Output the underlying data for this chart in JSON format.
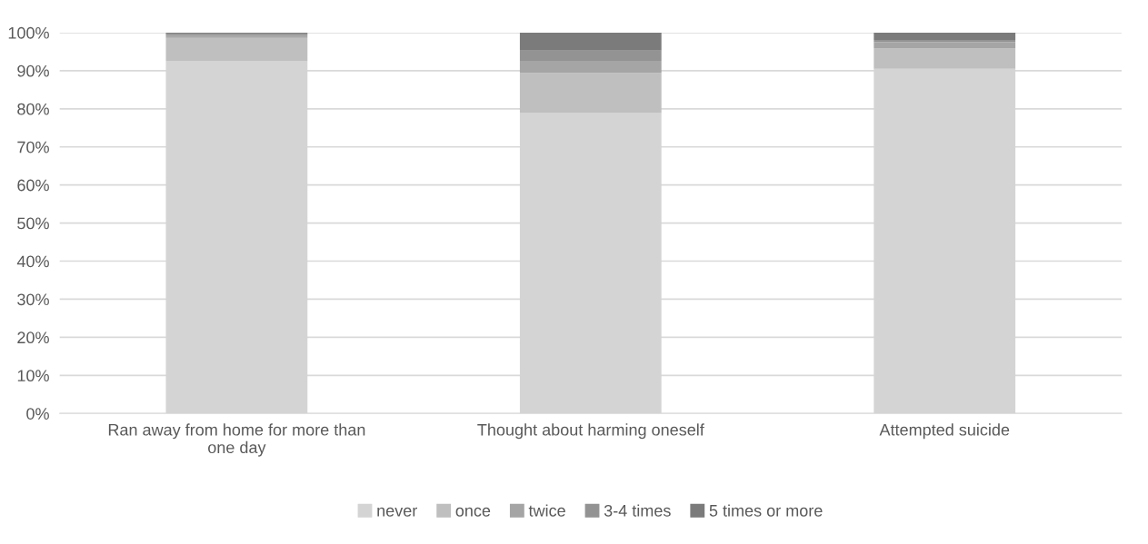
{
  "chart_data": {
    "type": "bar",
    "stacked": true,
    "categories": [
      "Ran away from home for more than\none day",
      "Thought about harming oneself",
      "Attempted suicide"
    ],
    "series": [
      {
        "name": "never",
        "color": "#d4d4d4",
        "values": [
          92.6,
          79.0,
          90.5
        ]
      },
      {
        "name": "once",
        "color": "#bfbfbf",
        "values": [
          6.0,
          10.4,
          5.3
        ]
      },
      {
        "name": "twice",
        "color": "#a5a5a5",
        "values": [
          0.6,
          3.2,
          1.7
        ]
      },
      {
        "name": "3-4 times",
        "color": "#939393",
        "values": [
          0.4,
          2.7,
          0.6
        ]
      },
      {
        "name": "5 times or more",
        "color": "#7b7b7b",
        "values": [
          0.4,
          4.7,
          1.9
        ]
      }
    ],
    "ylim": [
      0,
      100
    ],
    "yticks": [
      {
        "value": 0,
        "label": "0%"
      },
      {
        "value": 10,
        "label": "10%"
      },
      {
        "value": 20,
        "label": "20%"
      },
      {
        "value": 30,
        "label": "30%"
      },
      {
        "value": 40,
        "label": "40%"
      },
      {
        "value": 50,
        "label": "50%"
      },
      {
        "value": 60,
        "label": "60%"
      },
      {
        "value": 70,
        "label": "70%"
      },
      {
        "value": 80,
        "label": "80%"
      },
      {
        "value": 90,
        "label": "90%"
      },
      {
        "value": 100,
        "label": "100%"
      }
    ],
    "grid": "y",
    "legend": "bottom"
  }
}
